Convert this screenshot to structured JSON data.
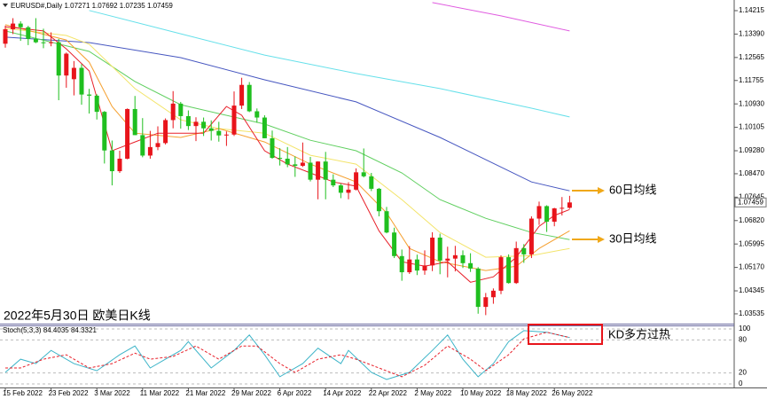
{
  "chart_data": [
    {
      "type": "candlestick",
      "symbol": "EURUSD#,Daily",
      "title": "2022年5月30日 欧美日K线",
      "categories": [
        "15 Feb 2022",
        null,
        null,
        null,
        null,
        null,
        "23 Feb 2022",
        null,
        null,
        null,
        null,
        null,
        "3 Mar 2022",
        null,
        null,
        null,
        null,
        null,
        "11 Mar 2022",
        null,
        null,
        null,
        null,
        null,
        "21 Mar 2022",
        null,
        null,
        null,
        null,
        null,
        "29 Mar 2022",
        null,
        null,
        null,
        null,
        null,
        "6 Apr 2022",
        null,
        null,
        null,
        null,
        null,
        "14 Apr 2022",
        null,
        null,
        null,
        null,
        null,
        "22 Apr 2022",
        null,
        null,
        null,
        null,
        null,
        "2 May 2022",
        null,
        null,
        null,
        null,
        null,
        "10 May 2022",
        null,
        null,
        null,
        null,
        null,
        "18 May 2022",
        null,
        null,
        null,
        null,
        null,
        "26 May 2022",
        null,
        null
      ],
      "open": [
        1.1305,
        1.1356,
        1.1376,
        1.1363,
        1.1322,
        1.131,
        1.1307,
        1.131,
        1.1193,
        1.118,
        1.122,
        1.1126,
        1.1122,
        1.1065,
        1.0929,
        1.0856,
        1.09,
        1.1075,
        1.0983,
        1.0911,
        1.0941,
        1.0955,
        1.1036,
        1.1094,
        1.105,
        1.1015,
        1.103,
        1.1007,
        1.0998,
        1.0982,
        1.0985,
        1.1087,
        1.116,
        1.1067,
        1.1045,
        1.0972,
        1.0903,
        1.09,
        1.088,
        1.0875,
        1.0886,
        1.0826,
        1.089,
        1.0826,
        1.0806,
        1.078,
        1.0791,
        1.0852,
        1.0838,
        1.0794,
        1.0715,
        1.064,
        1.0557,
        1.05,
        1.0545,
        1.0506,
        1.0524,
        1.0622,
        1.0541,
        1.0548,
        1.056,
        1.0532,
        1.0513,
        1.0378,
        1.0412,
        1.0435,
        1.0553,
        1.0462,
        1.0585,
        1.0563,
        1.0689,
        1.0733,
        1.0678,
        1.0725,
        1.07271
      ],
      "high": [
        1.1369,
        1.1395,
        1.1384,
        1.1368,
        1.1395,
        1.1358,
        1.1345,
        1.1322,
        1.1274,
        1.1244,
        1.1233,
        1.1146,
        1.1127,
        1.1068,
        1.0964,
        1.0928,
        1.1077,
        1.1121,
        1.1043,
        1.0998,
        1.1014,
        1.1042,
        1.1138,
        1.11,
        1.107,
        1.1046,
        1.1045,
        1.1035,
        1.103,
        1.0996,
        1.1137,
        1.1185,
        1.117,
        1.1077,
        1.1053,
        1.0999,
        1.0937,
        1.0941,
        1.0908,
        1.0957,
        1.0906,
        1.0891,
        1.0924,
        1.0845,
        1.0812,
        1.0817,
        1.0866,
        1.0936,
        1.085,
        1.0797,
        1.073,
        1.0657,
        1.058,
        1.0592,
        1.0562,
        1.0577,
        1.0641,
        1.0636,
        1.059,
        1.0593,
        1.0577,
        1.0567,
        1.0518,
        1.0427,
        1.0443,
        1.056,
        1.0563,
        1.0608,
        1.0599,
        1.0697,
        1.0749,
        1.0736,
        1.0727,
        1.0765,
        1.07692
      ],
      "low": [
        1.1291,
        1.1339,
        1.1315,
        1.13,
        1.1307,
        1.1289,
        1.1296,
        1.1106,
        1.115,
        1.1123,
        1.109,
        1.1059,
        1.1038,
        1.0883,
        1.0806,
        1.085,
        1.0898,
        1.0983,
        1.0905,
        1.09,
        1.093,
        1.095,
        1.1007,
        1.1006,
        1.1001,
        1.0962,
        1.098,
        1.0964,
        1.096,
        1.0945,
        1.098,
        1.1075,
        1.1064,
        1.1027,
        1.0972,
        1.09,
        1.0876,
        1.087,
        1.0836,
        1.0871,
        1.082,
        1.0757,
        1.0757,
        1.08,
        1.0761,
        1.0757,
        1.0788,
        1.0834,
        1.0786,
        1.0697,
        1.0637,
        1.055,
        1.047,
        1.0494,
        1.049,
        1.0491,
        1.0504,
        1.0493,
        1.0482,
        1.0503,
        1.0515,
        1.0501,
        1.0354,
        1.0349,
        1.0389,
        1.0423,
        1.046,
        1.0459,
        1.0533,
        1.055,
        1.0667,
        1.0642,
        1.0662,
        1.07,
        1.07235
      ],
      "close": [
        1.1356,
        1.1376,
        1.1363,
        1.1322,
        1.131,
        1.1307,
        1.131,
        1.1193,
        1.127,
        1.122,
        1.1126,
        1.1122,
        1.1065,
        1.0929,
        1.0856,
        1.09,
        1.1075,
        1.0983,
        1.0911,
        1.0941,
        1.0955,
        1.1036,
        1.1094,
        1.105,
        1.1015,
        1.103,
        1.1007,
        1.0998,
        1.0982,
        1.0985,
        1.1087,
        1.116,
        1.1067,
        1.1045,
        1.0972,
        1.0903,
        1.09,
        1.088,
        1.0875,
        1.0886,
        1.0826,
        1.089,
        1.0826,
        1.0806,
        1.078,
        1.0791,
        1.0852,
        1.0838,
        1.0794,
        1.0715,
        1.064,
        1.0557,
        1.05,
        1.0545,
        1.0506,
        1.0524,
        1.0622,
        1.0541,
        1.0548,
        1.056,
        1.0532,
        1.0513,
        1.0378,
        1.0412,
        1.0435,
        1.0553,
        1.0462,
        1.0585,
        1.0563,
        1.0689,
        1.0733,
        1.0678,
        1.0725,
        1.0727,
        1.07459
      ],
      "up_color": "#e8141b",
      "down_color": "#1fbf1f",
      "ylim": [
        1.0319,
        1.1459
      ],
      "yticks": [
        1.14215,
        {
          "value": 1.1339,
          "label": "1.13390"
        },
        1.12565,
        1.11755,
        {
          "value": 1.1093,
          "label": "1.10930"
        },
        1.10105,
        {
          "value": 1.0928,
          "label": "1.09280"
        },
        {
          "value": 1.0847,
          "label": "1.08470"
        },
        1.07645,
        {
          "value": 1.0682,
          "label": "1.06820"
        },
        1.05995,
        {
          "value": 1.0517,
          "label": "1.05170"
        },
        1.04345,
        1.03535
      ],
      "lines": [
        {
          "color": "#e05ce0",
          "x": [
            56,
            65,
            74
          ],
          "values": [
            1.145,
            1.1403,
            1.135
          ]
        },
        {
          "color": "#66e0ea",
          "x": [
            11,
            23,
            34,
            46,
            57,
            69,
            74
          ],
          "values": [
            1.1422,
            1.134,
            1.1265,
            1.12,
            1.1147,
            1.1078,
            1.1047
          ]
        },
        {
          "color": "#4656c0",
          "x": [
            0,
            11,
            23,
            34,
            46,
            57,
            69,
            74
          ],
          "values": [
            1.1328,
            1.1309,
            1.1256,
            1.1178,
            1.11,
            1.0975,
            1.0818,
            1.0787
          ]
        },
        {
          "color": "#5fcf5f",
          "x": [
            0,
            11,
            17,
            23,
            28,
            34,
            40,
            46,
            52,
            57,
            63,
            69,
            74
          ],
          "values": [
            1.135,
            1.1278,
            1.1172,
            1.109,
            1.1059,
            1.1022,
            1.0965,
            1.0928,
            1.085,
            1.0756,
            1.069,
            1.064,
            1.0615
          ]
        },
        {
          "color": "#f3e46a",
          "x": [
            0,
            8,
            11,
            17,
            23,
            28,
            34,
            40,
            46,
            52,
            57,
            63,
            69,
            74
          ],
          "values": [
            1.1359,
            1.1334,
            1.1303,
            1.1147,
            1.1037,
            1.1006,
            1.099,
            1.0912,
            1.0881,
            1.0756,
            1.064,
            1.0553,
            1.0559,
            1.0584
          ]
        },
        {
          "color": "#f5a030",
          "x": [
            0,
            8,
            11,
            14,
            17,
            23,
            28,
            34,
            40,
            46,
            50,
            53,
            57,
            63,
            67,
            70,
            74
          ],
          "values": [
            1.1372,
            1.1318,
            1.124,
            1.1084,
            1.099,
            1.0975,
            1.1006,
            1.0959,
            1.0881,
            1.0818,
            1.0709,
            1.0584,
            1.0537,
            1.0506,
            1.0521,
            1.0584,
            1.0646
          ]
        },
        {
          "color": "#e8202a",
          "x": [
            0,
            5,
            8,
            11,
            14,
            17,
            20,
            23,
            26,
            29,
            31,
            34,
            37,
            40,
            43,
            46,
            49,
            52,
            55,
            58,
            61,
            64,
            67,
            70,
            72,
            74
          ],
          "values": [
            1.1365,
            1.135,
            1.1287,
            1.1209,
            1.0928,
            1.0959,
            1.099,
            1.099,
            1.099,
            1.1084,
            1.1053,
            1.0928,
            1.0881,
            1.085,
            1.0818,
            1.0803,
            1.0646,
            1.0537,
            1.0521,
            1.0537,
            1.0465,
            1.0484,
            1.0553,
            1.0662,
            1.07,
            1.0721
          ]
        }
      ],
      "annotations": [
        "60日均线",
        "30日均线"
      ]
    },
    {
      "type": "line",
      "label": "Stoch(5,3,3)",
      "annotation": "KD多方过热",
      "ylim": [
        -6.5,
        106.5
      ],
      "yticks": [
        100,
        80,
        20,
        0
      ],
      "series": [
        {
          "color": "#3cb4c8",
          "x": [
            0,
            2,
            4,
            6,
            9,
            12,
            15,
            17,
            19,
            21,
            23,
            24,
            27,
            30,
            32,
            34,
            36,
            39,
            41,
            44,
            45,
            48,
            50,
            53,
            56,
            58,
            60,
            62,
            64,
            66,
            68,
            71,
            74
          ],
          "values": [
            21,
            45,
            37,
            61,
            37,
            24,
            53,
            69,
            29,
            45,
            61,
            77,
            29,
            61,
            89,
            53,
            13,
            37,
            65,
            37,
            61,
            21,
            8,
            21,
            61,
            89,
            45,
            13,
            37,
            77,
            97,
            94,
            84.4035
          ]
        },
        {
          "color": "#e8202a",
          "dash": true,
          "x": [
            0,
            2,
            5,
            8,
            11,
            14,
            17,
            19,
            22,
            25,
            28,
            31,
            33,
            36,
            38,
            41,
            44,
            46,
            49,
            52,
            55,
            58,
            61,
            63,
            66,
            68,
            71,
            74
          ],
          "values": [
            29,
            29,
            45,
            53,
            29,
            37,
            56,
            45,
            50,
            69,
            45,
            69,
            69,
            37,
            21,
            45,
            53,
            45,
            29,
            13,
            34,
            69,
            45,
            24,
            53,
            82,
            94,
            84.3321
          ]
        }
      ]
    }
  ]
}
